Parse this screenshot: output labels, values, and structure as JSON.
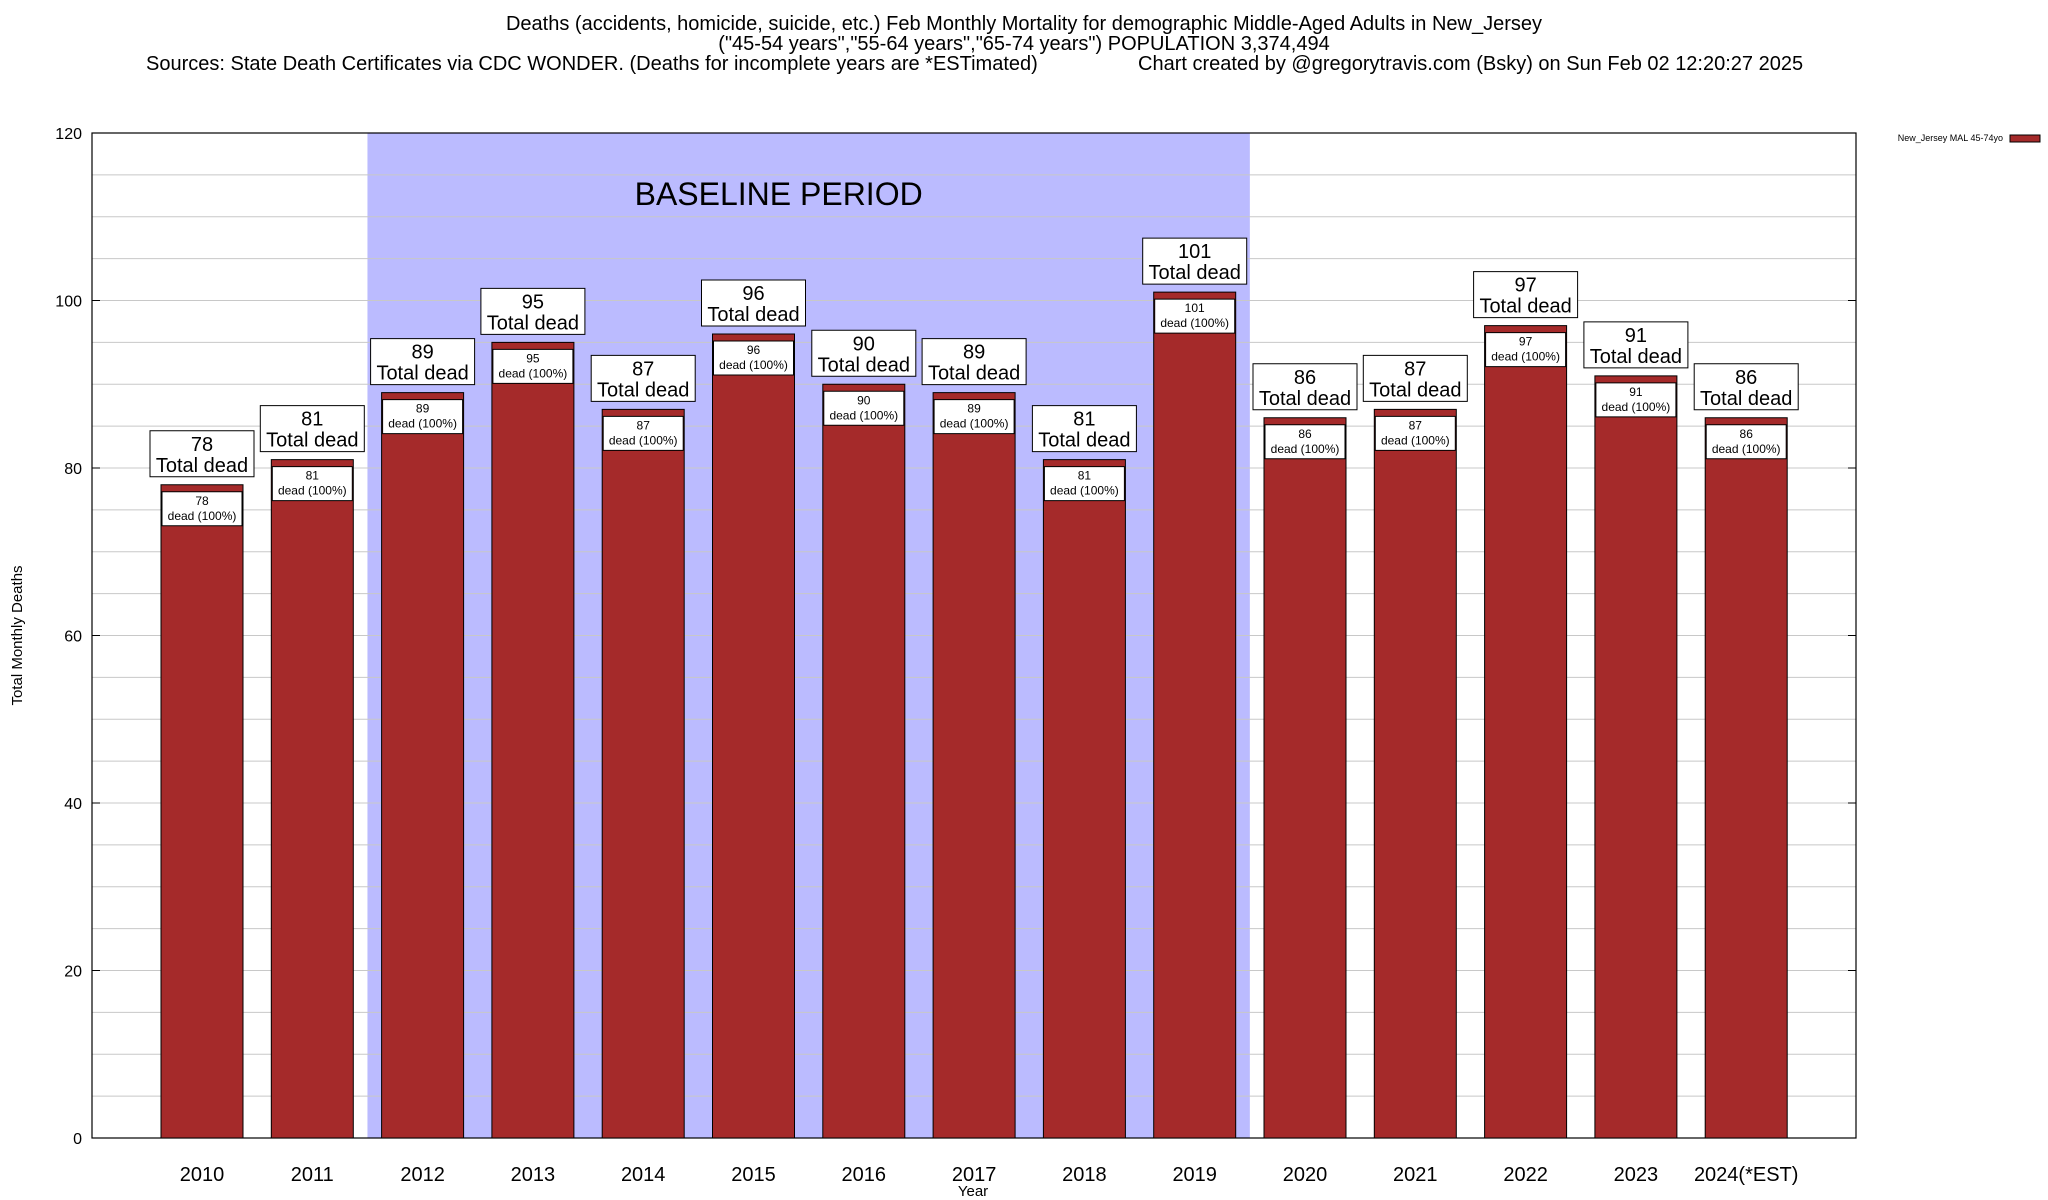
{
  "header": {
    "title_line1": "Deaths (accidents, homicide, suicide, etc.) Feb Monthly Mortality for demographic Middle-Aged Adults in New_Jersey",
    "title_line2": "(\"45-54 years\",\"55-64 years\",\"65-74 years\") POPULATION 3,374,494",
    "sources": "Sources: State Death Certificates via CDC WONDER. (Deaths for incomplete years are *ESTimated)",
    "credit": "Chart created by @gregorytravis.com (Bsky) on Sun Feb 02 12:20:27 2025"
  },
  "colors": {
    "bar": "#a52a2a",
    "baseline_shade": "#bbbbff",
    "grid": "#c8c8c8"
  },
  "chart_data": {
    "type": "bar",
    "title": "Deaths (accidents, homicide, suicide, etc.) Feb Monthly Mortality for demographic Middle-Aged Adults in New_Jersey",
    "xlabel": "Year",
    "ylabel": "Total Monthly Deaths",
    "ylim": [
      0,
      120
    ],
    "yticks": [
      0,
      20,
      40,
      60,
      80,
      100,
      120
    ],
    "grid": true,
    "legend": "top-right",
    "categories": [
      "2010",
      "2011",
      "2012",
      "2013",
      "2014",
      "2015",
      "2016",
      "2017",
      "2018",
      "2019",
      "2020",
      "2021",
      "2022",
      "2023",
      "2024(*EST)"
    ],
    "series": [
      {
        "name": "New_Jersey MAL 45-74yo",
        "values": [
          78,
          81,
          89,
          95,
          87,
          96,
          90,
          89,
          81,
          101,
          86,
          87,
          97,
          91,
          86
        ]
      }
    ],
    "baseline": {
      "label": "BASELINE PERIOD",
      "start_category": "2012",
      "end_category": "2019"
    },
    "top_label_suffix": "Total dead",
    "inner_label_suffix": "dead (100%)"
  }
}
